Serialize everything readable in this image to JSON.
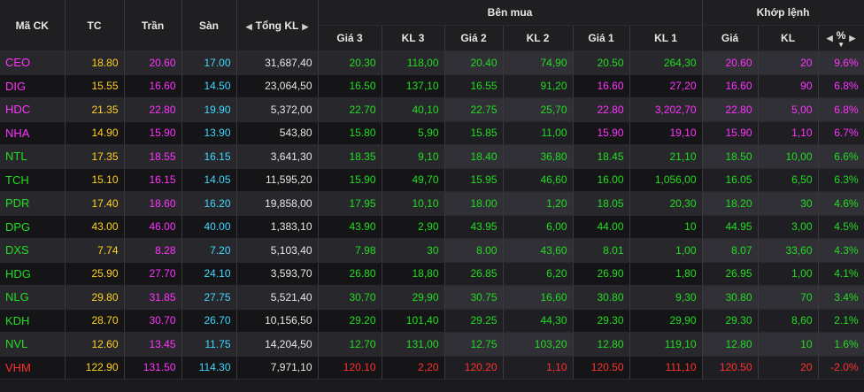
{
  "headers": {
    "symbol": "Mã CK",
    "ref": "TC",
    "ceiling": "Trần",
    "floor": "Sàn",
    "total_volume": "Tổng KL",
    "bid_group": "Bên mua",
    "bid3_price": "Giá 3",
    "bid3_vol": "KL 3",
    "bid2_price": "Giá 2",
    "bid2_vol": "KL 2",
    "bid1_price": "Giá 1",
    "bid1_vol": "KL 1",
    "match_group": "Khớp lệnh",
    "match_price": "Giá",
    "match_vol": "KL",
    "match_pct": "%"
  },
  "colors": {
    "ceiling": "#ff33ff",
    "reference": "#ffd21e",
    "floor": "#3ed9ff",
    "up": "#22dd22",
    "down": "#ff3030"
  },
  "rows": [
    {
      "sym": "CEO",
      "tc": "18.80",
      "ceil": "20.60",
      "floor": "17.00",
      "vol": "31,687,40",
      "p3": "20.30",
      "v3": "118,00",
      "p2": "20.40",
      "v2": "74,90",
      "p1": "20.50",
      "v1": "264,30",
      "mp": "20.60",
      "mv": "20",
      "pct": "9.6%",
      "sc": "c-ceil",
      "c3": "c-up",
      "c2": "c-up",
      "c1": "c-up",
      "mc": "c-ceil"
    },
    {
      "sym": "DIG",
      "tc": "15.55",
      "ceil": "16.60",
      "floor": "14.50",
      "vol": "23,064,50",
      "p3": "16.50",
      "v3": "137,10",
      "p2": "16.55",
      "v2": "91,20",
      "p1": "16.60",
      "v1": "27,20",
      "mp": "16.60",
      "mv": "90",
      "pct": "6.8%",
      "sc": "c-ceil",
      "c3": "c-up",
      "c2": "c-up",
      "c1": "c-ceil",
      "mc": "c-ceil"
    },
    {
      "sym": "HDC",
      "tc": "21.35",
      "ceil": "22.80",
      "floor": "19.90",
      "vol": "5,372,00",
      "p3": "22.70",
      "v3": "40,10",
      "p2": "22.75",
      "v2": "25,70",
      "p1": "22.80",
      "v1": "3,202,70",
      "mp": "22.80",
      "mv": "5,00",
      "pct": "6.8%",
      "sc": "c-ceil",
      "c3": "c-up",
      "c2": "c-up",
      "c1": "c-ceil",
      "mc": "c-ceil"
    },
    {
      "sym": "NHA",
      "tc": "14.90",
      "ceil": "15.90",
      "floor": "13.90",
      "vol": "543,80",
      "p3": "15.80",
      "v3": "5,90",
      "p2": "15.85",
      "v2": "11,00",
      "p1": "15.90",
      "v1": "19,10",
      "mp": "15.90",
      "mv": "1,10",
      "pct": "6.7%",
      "sc": "c-ceil",
      "c3": "c-up",
      "c2": "c-up",
      "c1": "c-ceil",
      "mc": "c-ceil"
    },
    {
      "sym": "NTL",
      "tc": "17.35",
      "ceil": "18.55",
      "floor": "16.15",
      "vol": "3,641,30",
      "p3": "18.35",
      "v3": "9,10",
      "p2": "18.40",
      "v2": "36,80",
      "p1": "18.45",
      "v1": "21,10",
      "mp": "18.50",
      "mv": "10,00",
      "pct": "6.6%",
      "sc": "c-up",
      "c3": "c-up",
      "c2": "c-up",
      "c1": "c-up",
      "mc": "c-up"
    },
    {
      "sym": "TCH",
      "tc": "15.10",
      "ceil": "16.15",
      "floor": "14.05",
      "vol": "11,595,20",
      "p3": "15.90",
      "v3": "49,70",
      "p2": "15.95",
      "v2": "46,60",
      "p1": "16.00",
      "v1": "1,056,00",
      "mp": "16.05",
      "mv": "6,50",
      "pct": "6.3%",
      "sc": "c-up",
      "c3": "c-up",
      "c2": "c-up",
      "c1": "c-up",
      "mc": "c-up"
    },
    {
      "sym": "PDR",
      "tc": "17.40",
      "ceil": "18.60",
      "floor": "16.20",
      "vol": "19,858,00",
      "p3": "17.95",
      "v3": "10,10",
      "p2": "18.00",
      "v2": "1,20",
      "p1": "18.05",
      "v1": "20,30",
      "mp": "18.20",
      "mv": "30",
      "pct": "4.6%",
      "sc": "c-up",
      "c3": "c-up",
      "c2": "c-up",
      "c1": "c-up",
      "mc": "c-up"
    },
    {
      "sym": "DPG",
      "tc": "43.00",
      "ceil": "46.00",
      "floor": "40.00",
      "vol": "1,383,10",
      "p3": "43.90",
      "v3": "2,90",
      "p2": "43.95",
      "v2": "6,00",
      "p1": "44.00",
      "v1": "10",
      "mp": "44.95",
      "mv": "3,00",
      "pct": "4.5%",
      "sc": "c-up",
      "c3": "c-up",
      "c2": "c-up",
      "c1": "c-up",
      "mc": "c-up"
    },
    {
      "sym": "DXS",
      "tc": "7.74",
      "ceil": "8.28",
      "floor": "7.20",
      "vol": "5,103,40",
      "p3": "7.98",
      "v3": "30",
      "p2": "8.00",
      "v2": "43,60",
      "p1": "8.01",
      "v1": "1,00",
      "mp": "8.07",
      "mv": "33,60",
      "pct": "4.3%",
      "sc": "c-up",
      "c3": "c-up",
      "c2": "c-up",
      "c1": "c-up",
      "mc": "c-up"
    },
    {
      "sym": "HDG",
      "tc": "25.90",
      "ceil": "27.70",
      "floor": "24.10",
      "vol": "3,593,70",
      "p3": "26.80",
      "v3": "18,80",
      "p2": "26.85",
      "v2": "6,20",
      "p1": "26.90",
      "v1": "1,80",
      "mp": "26.95",
      "mv": "1,00",
      "pct": "4.1%",
      "sc": "c-up",
      "c3": "c-up",
      "c2": "c-up",
      "c1": "c-up",
      "mc": "c-up"
    },
    {
      "sym": "NLG",
      "tc": "29.80",
      "ceil": "31.85",
      "floor": "27.75",
      "vol": "5,521,40",
      "p3": "30.70",
      "v3": "29,90",
      "p2": "30.75",
      "v2": "16,60",
      "p1": "30.80",
      "v1": "9,30",
      "mp": "30.80",
      "mv": "70",
      "pct": "3.4%",
      "sc": "c-up",
      "c3": "c-up",
      "c2": "c-up",
      "c1": "c-up",
      "mc": "c-up"
    },
    {
      "sym": "KDH",
      "tc": "28.70",
      "ceil": "30.70",
      "floor": "26.70",
      "vol": "10,156,50",
      "p3": "29.20",
      "v3": "101,40",
      "p2": "29.25",
      "v2": "44,30",
      "p1": "29.30",
      "v1": "29,90",
      "mp": "29.30",
      "mv": "8,60",
      "pct": "2.1%",
      "sc": "c-up",
      "c3": "c-up",
      "c2": "c-up",
      "c1": "c-up",
      "mc": "c-up"
    },
    {
      "sym": "NVL",
      "tc": "12.60",
      "ceil": "13.45",
      "floor": "11.75",
      "vol": "14,204,50",
      "p3": "12.70",
      "v3": "131,00",
      "p2": "12.75",
      "v2": "103,20",
      "p1": "12.80",
      "v1": "119,10",
      "mp": "12.80",
      "mv": "10",
      "pct": "1.6%",
      "sc": "c-up",
      "c3": "c-up",
      "c2": "c-up",
      "c1": "c-up",
      "mc": "c-up"
    },
    {
      "sym": "VHM",
      "tc": "122.90",
      "ceil": "131.50",
      "floor": "114.30",
      "vol": "7,971,10",
      "p3": "120.10",
      "v3": "2,20",
      "p2": "120.20",
      "v2": "1,10",
      "p1": "120.50",
      "v1": "111,10",
      "mp": "120.50",
      "mv": "20",
      "pct": "-2.0%",
      "sc": "c-down",
      "c3": "c-down",
      "c2": "c-down",
      "c1": "c-down",
      "mc": "c-down"
    }
  ]
}
